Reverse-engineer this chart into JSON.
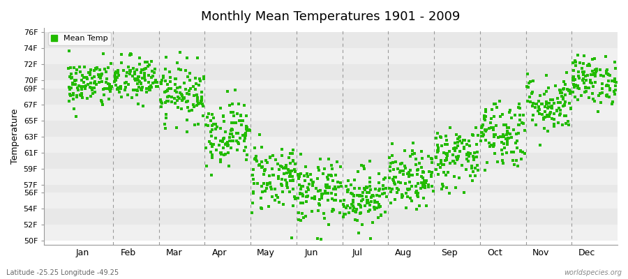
{
  "title": "Monthly Mean Temperatures 1901 - 2009",
  "ylabel": "Temperature",
  "footnote_left": "Latitude -25.25 Longitude -49.25",
  "footnote_right": "worldspecies.org",
  "legend_label": "Mean Temp",
  "marker_color": "#22bb00",
  "background_color": "#ffffff",
  "band_color_odd": "#f0f0f0",
  "band_color_even": "#e8e8e8",
  "ytick_labels": [
    "50F",
    "52F",
    "54F",
    "56F",
    "57F",
    "59F",
    "61F",
    "63F",
    "65F",
    "67F",
    "69F",
    "70F",
    "72F",
    "74F",
    "76F"
  ],
  "ytick_values": [
    50,
    52,
    54,
    56,
    57,
    59,
    61,
    63,
    65,
    67,
    69,
    70,
    72,
    74,
    76
  ],
  "ylim": [
    49.5,
    76.5
  ],
  "months": [
    "Jan",
    "Feb",
    "Mar",
    "Apr",
    "May",
    "Jun",
    "Jul",
    "Aug",
    "Sep",
    "Oct",
    "Nov",
    "Dec"
  ],
  "xlim": [
    -0.5,
    12
  ],
  "n_years": 109,
  "monthly_mean_temps_F": [
    69.5,
    70.0,
    68.5,
    63.5,
    58.0,
    56.0,
    55.5,
    57.5,
    60.5,
    63.5,
    67.0,
    70.0
  ],
  "monthly_std_temps_F": [
    1.5,
    1.5,
    1.8,
    2.0,
    2.2,
    2.0,
    1.8,
    1.8,
    2.0,
    2.2,
    1.8,
    1.5
  ],
  "random_seed": 42
}
